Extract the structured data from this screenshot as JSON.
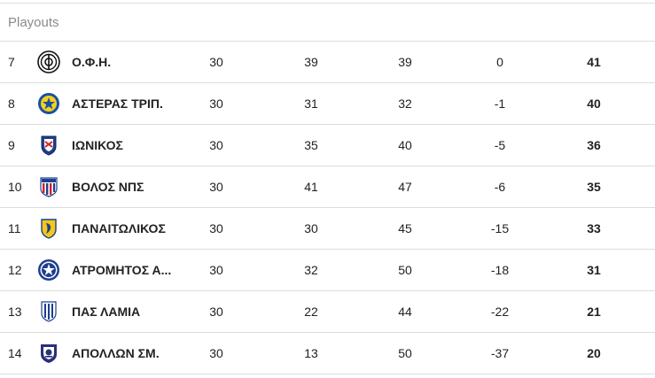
{
  "group": {
    "title": "Playouts"
  },
  "rows": [
    {
      "rank": "7",
      "team": "Ο.Φ.Η.",
      "crest": "ofi-crest-icon",
      "played": "30",
      "gf": "39",
      "ga": "39",
      "gd": "0",
      "pts": "41"
    },
    {
      "rank": "8",
      "team": "ΑΣΤΕΡΑΣ ΤΡΙΠ.",
      "crest": "asteras-crest-icon",
      "played": "30",
      "gf": "31",
      "ga": "32",
      "gd": "-1",
      "pts": "40"
    },
    {
      "rank": "9",
      "team": "ΙΩΝΙΚΟΣ",
      "crest": "ionikos-crest-icon",
      "played": "30",
      "gf": "35",
      "ga": "40",
      "gd": "-5",
      "pts": "36"
    },
    {
      "rank": "10",
      "team": "ΒΟΛΟΣ ΝΠΣ",
      "crest": "volos-crest-icon",
      "played": "30",
      "gf": "41",
      "ga": "47",
      "gd": "-6",
      "pts": "35"
    },
    {
      "rank": "11",
      "team": "ΠΑΝΑΙΤΩΛΙΚΟΣ",
      "crest": "panaitolikos-crest-icon",
      "played": "30",
      "gf": "30",
      "ga": "45",
      "gd": "-15",
      "pts": "33"
    },
    {
      "rank": "12",
      "team": "ΑΤΡΟΜΗΤΟΣ Α...",
      "crest": "atromitos-crest-icon",
      "played": "30",
      "gf": "32",
      "ga": "50",
      "gd": "-18",
      "pts": "31"
    },
    {
      "rank": "13",
      "team": "ΠΑΣ ΛΑΜΙΑ",
      "crest": "lamia-crest-icon",
      "played": "30",
      "gf": "22",
      "ga": "44",
      "gd": "-22",
      "pts": "21"
    },
    {
      "rank": "14",
      "team": "ΑΠΟΛΛΩΝ ΣΜ.",
      "crest": "apollon-crest-icon",
      "played": "30",
      "gf": "13",
      "ga": "50",
      "gd": "-37",
      "pts": "20"
    }
  ],
  "colors": {
    "divider": "#dcdcdc",
    "group_title": "#8a8a8a",
    "text": "#222222"
  }
}
